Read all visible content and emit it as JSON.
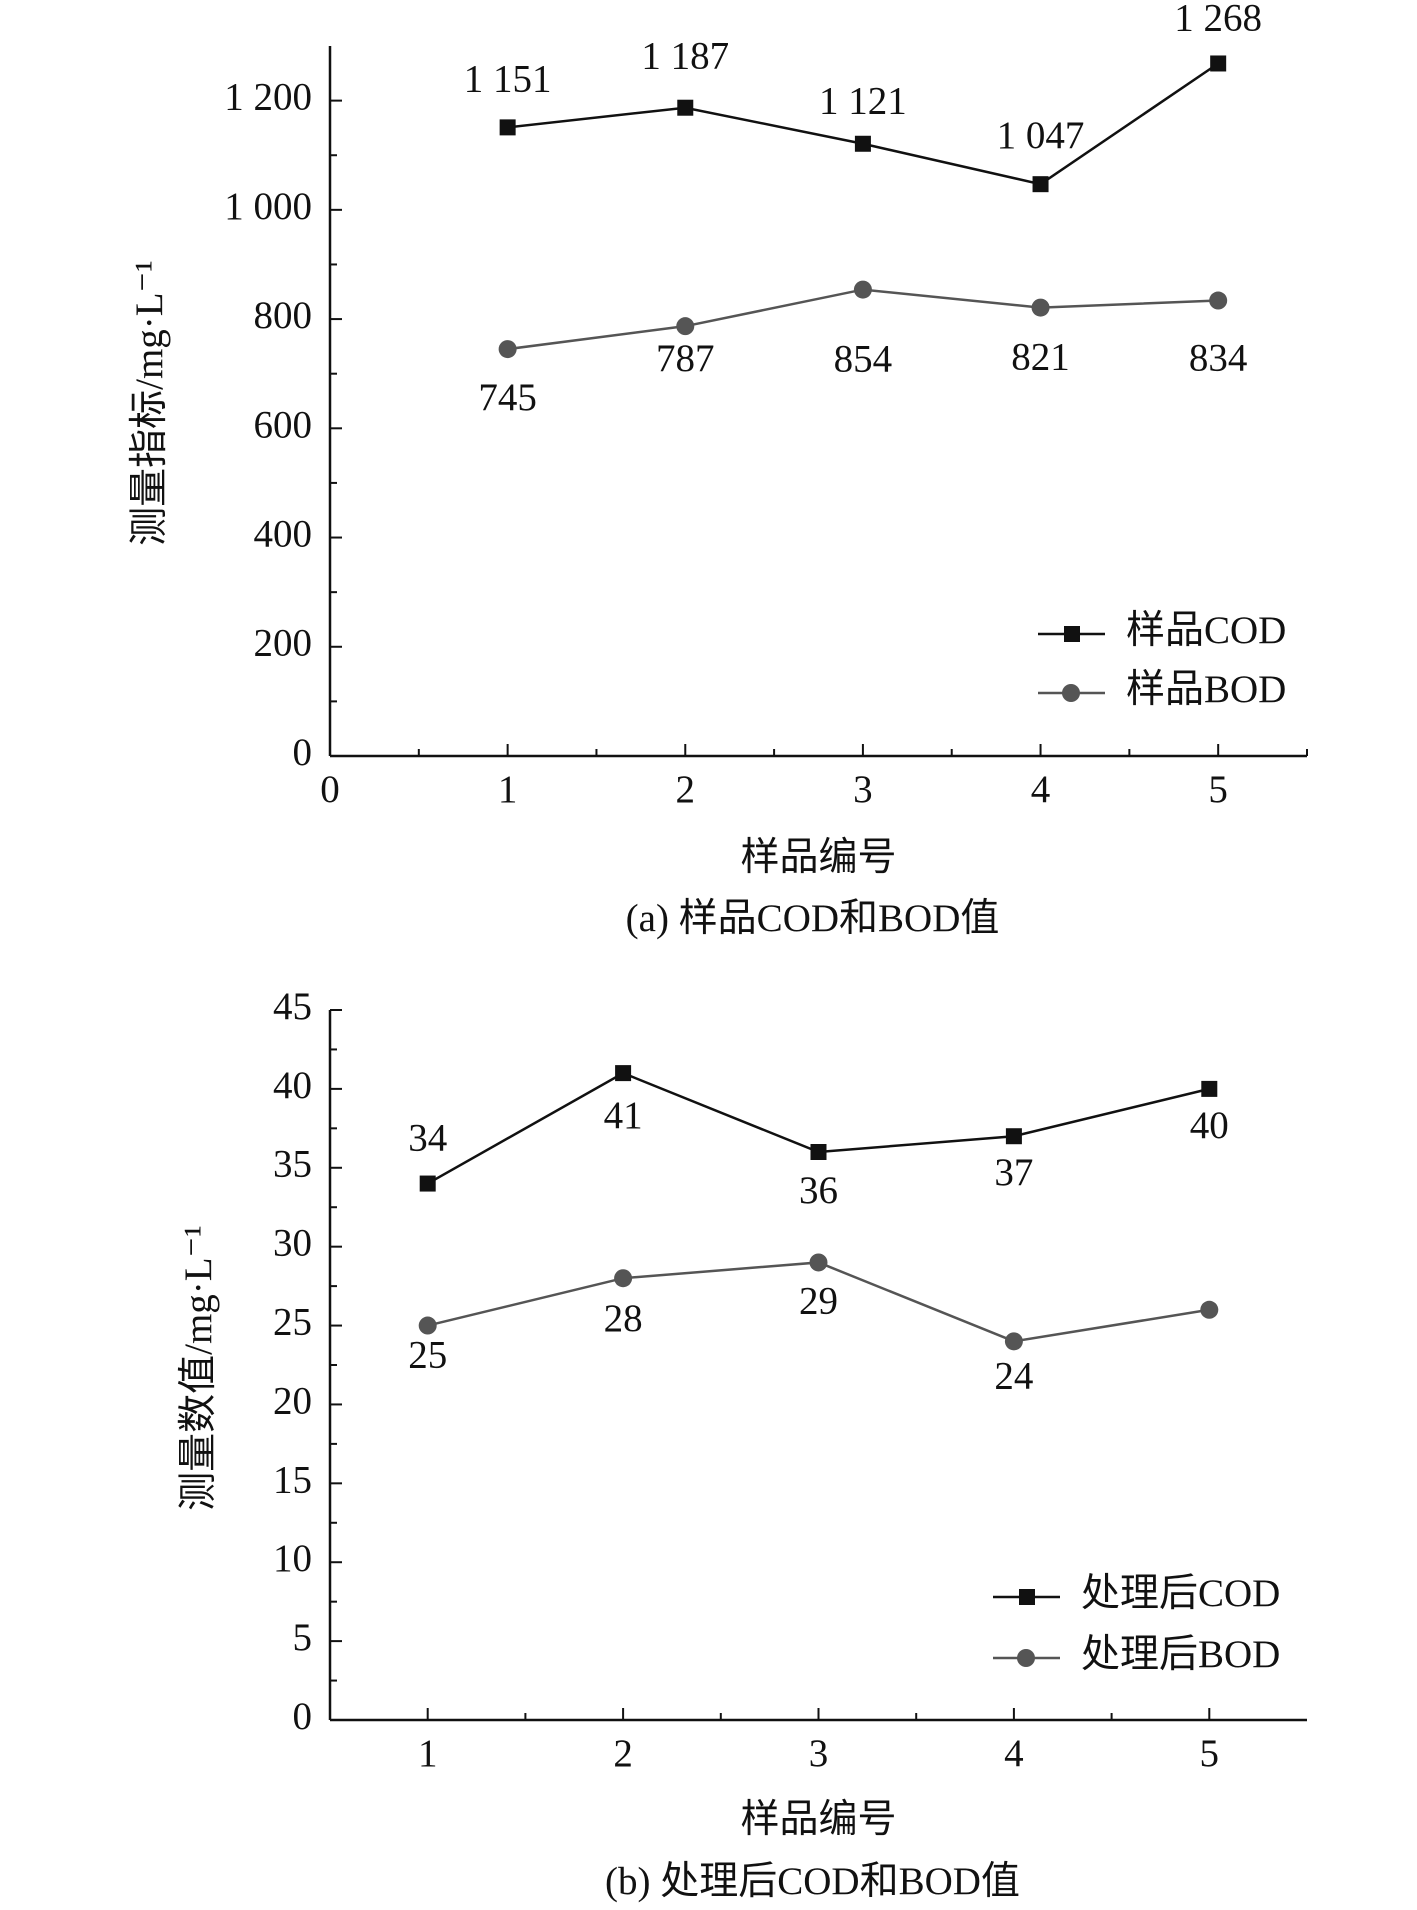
{
  "chart_data": [
    {
      "type": "line",
      "caption": "(a) 样品COD和BOD值",
      "x_label": "样品编号",
      "y_label": "测量指标/mg·L⁻¹",
      "x": [
        1,
        2,
        3,
        4,
        5
      ],
      "xlim": [
        0,
        5.5
      ],
      "xticks": [
        0,
        1,
        2,
        3,
        4,
        5
      ],
      "ylim": [
        0,
        1300
      ],
      "yticks": [
        0,
        200,
        400,
        600,
        800,
        {
          "value": 1000,
          "label": "1 000"
        },
        {
          "value": 1200,
          "label": "1 200"
        }
      ],
      "legend": "lower right",
      "series": [
        {
          "name": "样品COD",
          "color": "#111111",
          "marker": "square",
          "values": [
            1151,
            1187,
            1121,
            1047,
            1268
          ],
          "value_labels": [
            "1 151",
            "1 187",
            "1 121",
            "1 047",
            "1 268"
          ]
        },
        {
          "name": "样品BOD",
          "color": "#555555",
          "marker": "circle",
          "values": [
            745,
            787,
            854,
            821,
            834
          ]
        }
      ]
    },
    {
      "type": "line",
      "caption": "(b) 处理后COD和BOD值",
      "x_label": "样品编号",
      "y_label": "测量数值/mg·L⁻¹",
      "x": [
        1,
        2,
        3,
        4,
        5
      ],
      "xlim": [
        0.5,
        5.5
      ],
      "xticks": [
        1,
        2,
        3,
        4,
        5
      ],
      "ylim": [
        0,
        45
      ],
      "yticks": [
        0,
        5,
        10,
        15,
        20,
        25,
        30,
        35,
        40,
        45
      ],
      "legend": "lower right",
      "series": [
        {
          "name": "处理后COD",
          "color": "#111111",
          "marker": "square",
          "values": [
            34,
            41,
            36,
            37,
            40
          ]
        },
        {
          "name": "处理后BOD",
          "color": "#555555",
          "marker": "circle",
          "values": [
            25,
            28,
            29,
            24,
            26
          ],
          "value_labels": [
            "25",
            "28",
            "29",
            "24",
            null
          ]
        }
      ]
    }
  ]
}
